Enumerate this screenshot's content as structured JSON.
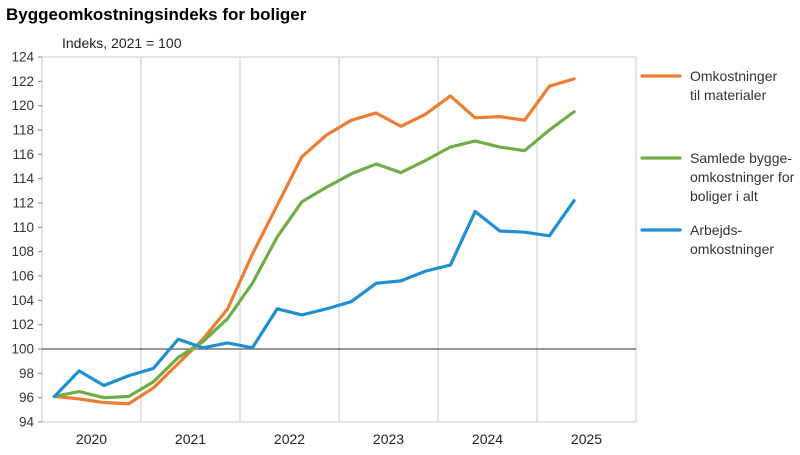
{
  "chart_data": {
    "type": "line",
    "title": "Byggeomkostningsindeks for boliger",
    "ylabel": "Indeks, 2021 = 100",
    "ylim": [
      94,
      124
    ],
    "yticks": [
      94,
      96,
      98,
      100,
      102,
      104,
      106,
      108,
      110,
      112,
      114,
      116,
      118,
      120,
      122,
      124
    ],
    "reference_line": 100,
    "x_year_labels": [
      "2020",
      "2021",
      "2022",
      "2023",
      "2024",
      "2025"
    ],
    "x": [
      "2020Q1",
      "2020Q2",
      "2020Q3",
      "2020Q4",
      "2021Q1",
      "2021Q2",
      "2021Q3",
      "2021Q4",
      "2022Q1",
      "2022Q2",
      "2022Q3",
      "2022Q4",
      "2023Q1",
      "2023Q2",
      "2023Q3",
      "2023Q4",
      "2024Q1",
      "2024Q2",
      "2024Q3",
      "2024Q4",
      "2025Q1",
      "2025Q2"
    ],
    "series": [
      {
        "name": "Omkostninger til materialer",
        "legend_lines": [
          "Omkostninger",
          "til materialer"
        ],
        "color": "#ED7D31",
        "values": [
          96.1,
          95.9,
          95.6,
          95.5,
          96.8,
          98.8,
          100.8,
          103.3,
          107.8,
          111.8,
          115.8,
          117.6,
          118.8,
          119.4,
          118.3,
          119.3,
          120.8,
          119.0,
          119.1,
          118.8,
          121.6,
          122.2
        ]
      },
      {
        "name": "Samlede byggeomkostninger for boliger i alt",
        "legend_lines": [
          "Samlede bygge-",
          "omkostninger for",
          "boliger i alt"
        ],
        "color": "#70AD47",
        "values": [
          96.1,
          96.5,
          96.0,
          96.1,
          97.3,
          99.3,
          100.6,
          102.5,
          105.4,
          109.2,
          112.1,
          113.3,
          114.4,
          115.2,
          114.5,
          115.5,
          116.6,
          117.1,
          116.6,
          116.3,
          118.0,
          119.5
        ]
      },
      {
        "name": "Arbejdsomkostninger",
        "legend_lines": [
          "Arbejds-",
          "omkostninger"
        ],
        "color": "#1F8FD1",
        "values": [
          96.1,
          98.2,
          97.0,
          97.8,
          98.4,
          100.8,
          100.1,
          100.5,
          100.1,
          103.3,
          102.8,
          103.3,
          103.9,
          105.4,
          105.6,
          106.4,
          106.9,
          111.3,
          109.7,
          109.6,
          109.3,
          112.2
        ]
      }
    ]
  }
}
